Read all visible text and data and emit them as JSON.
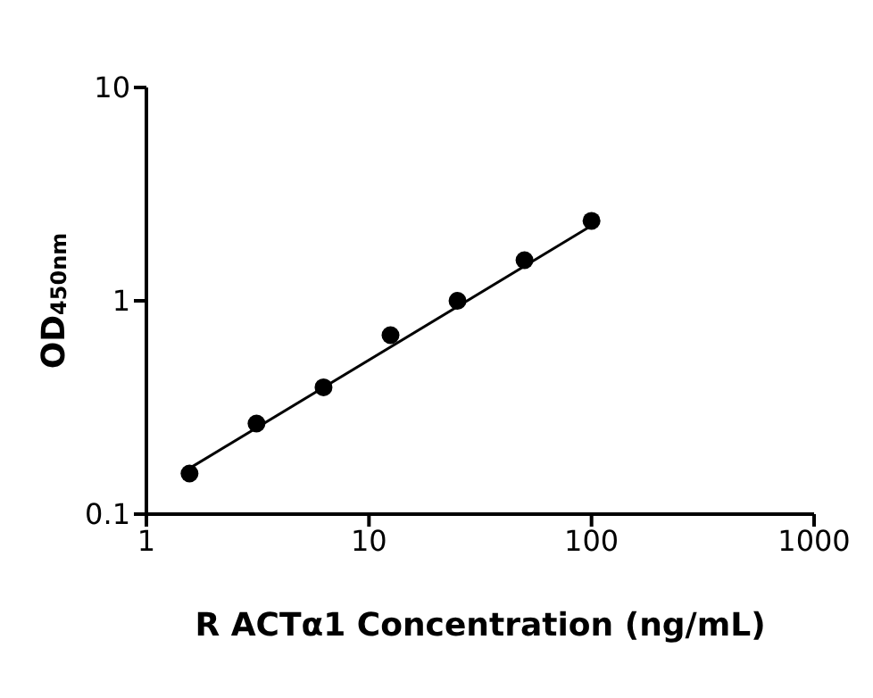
{
  "chart_data": {
    "type": "scatter",
    "xlabel": "R ACTα1 Concentration (ng/mL)",
    "ylabel": "OD$_{450nm}$",
    "log": "xy",
    "xlim": [
      1,
      1000
    ],
    "xticks": [
      1,
      10,
      100,
      1000
    ],
    "ylim": [
      0.1,
      10
    ],
    "yticks": [
      0.1,
      1,
      10
    ],
    "grid": false,
    "legend": false,
    "marker": "circle",
    "series": [
      {
        "color": "#000000",
        "x": [
          1.5625,
          3.125,
          6.25,
          12.5,
          25,
          50,
          100
        ],
        "values": [
          0.155,
          0.266,
          0.393,
          0.69,
          1.0,
          1.55,
          2.37
        ]
      },
      {
        "type": "line",
        "color": "#000000",
        "marker": "none",
        "line_style": "solid",
        "x": [
          1.5625,
          100
        ],
        "values": [
          0.164,
          2.25
        ]
      }
    ]
  }
}
